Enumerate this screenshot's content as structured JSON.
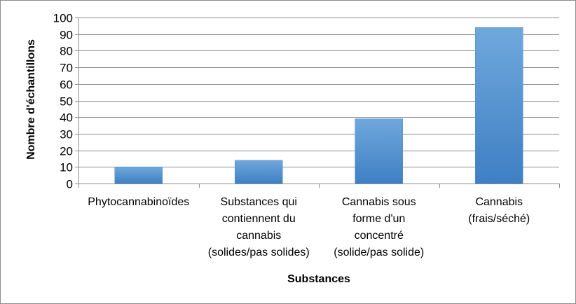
{
  "chart_data": {
    "type": "bar",
    "categories": [
      [
        "Phytocannabinoïdes"
      ],
      [
        "Substances qui",
        "contiennent du",
        "cannabis",
        "(solides/pas solides)"
      ],
      [
        "Cannabis sous",
        "forme d'un",
        "concentré",
        "(solide/pas solide)"
      ],
      [
        "Cannabis",
        "(frais/séché)"
      ]
    ],
    "values": [
      10,
      14,
      39,
      94
    ],
    "xlabel": "Substances",
    "ylabel": "Nombre d'échantillons",
    "ylim": [
      0,
      100
    ],
    "yticks": [
      0,
      10,
      20,
      30,
      40,
      50,
      60,
      70,
      80,
      90,
      100
    ],
    "grid": true,
    "bar_color": "#5b9bd5"
  }
}
